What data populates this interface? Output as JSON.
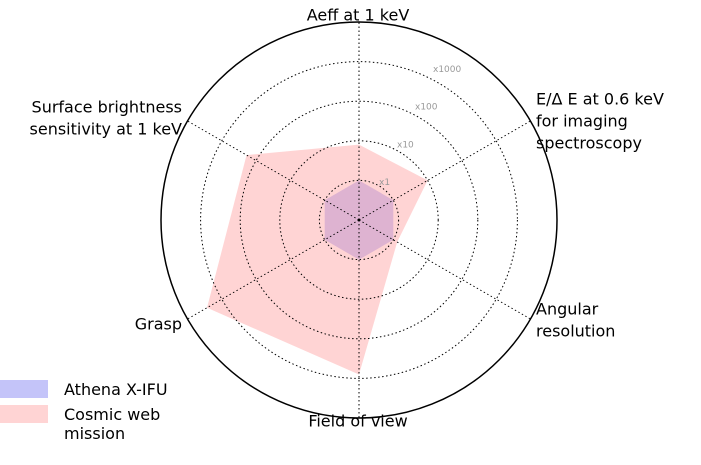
{
  "chart_data": {
    "type": "radar",
    "categories": [
      [
        "Aeff at 1 keV"
      ],
      [
        "E/Δ E at 0.6 keV",
        "for imaging",
        "spectroscopy"
      ],
      [
        "Angular",
        "resolution"
      ],
      [
        "Field of view"
      ],
      [
        "Grasp"
      ],
      [
        "Surface brightness",
        "sensitivity at 1 keV"
      ]
    ],
    "rscale": "log",
    "rlim": [
      0.1,
      10000
    ],
    "rticks": [
      {
        "value": 1,
        "label": "x1"
      },
      {
        "value": 10,
        "label": "x10"
      },
      {
        "value": 100,
        "label": "x100"
      },
      {
        "value": 1000,
        "label": "x1000"
      }
    ],
    "grid": true,
    "series": [
      {
        "name": "Athena X-IFU",
        "color": "#9d9df5",
        "values": [
          1,
          1,
          1,
          1,
          1,
          1
        ]
      },
      {
        "name": "Cosmic web mission",
        "color": "#ffb0b0",
        "values": [
          8,
          10,
          1.3,
          800,
          2700,
          190
        ]
      }
    ],
    "legend": "lower left"
  }
}
